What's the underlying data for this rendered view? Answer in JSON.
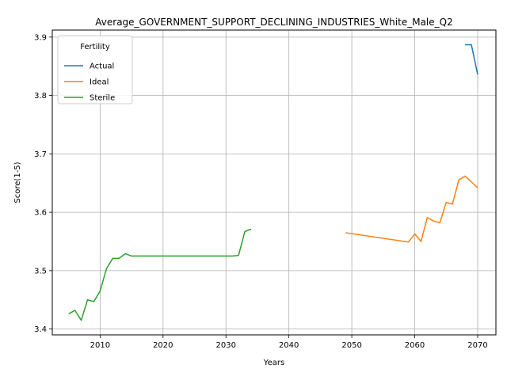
{
  "chart_data": {
    "type": "line",
    "title": "Average_GOVERNMENT_SUPPORT_DECLINING_INDUSTRIES_White_Male_Q2",
    "xlabel": "Years",
    "ylabel": "Score(1-5)",
    "xlim": [
      2002.4,
      2072.9
    ],
    "ylim": [
      3.39,
      3.912
    ],
    "xticks": [
      2010,
      2020,
      2030,
      2040,
      2050,
      2060,
      2070
    ],
    "yticks": [
      3.4,
      3.5,
      3.6,
      3.7,
      3.8,
      3.9
    ],
    "ytick_labels": [
      "3.4",
      "3.5",
      "3.6",
      "3.7",
      "3.8",
      "3.9"
    ],
    "grid": true,
    "legend": {
      "title": "Fertility",
      "placement": "top-left"
    },
    "series": [
      {
        "name": "Actual",
        "color": "#1f77b4",
        "x": [
          2068,
          2069,
          2070
        ],
        "y": [
          3.887,
          3.887,
          3.836
        ]
      },
      {
        "name": "Ideal",
        "color": "#ff7f0e",
        "x": [
          2049,
          2059,
          2060,
          2061,
          2062,
          2063,
          2064,
          2065,
          2066,
          2067,
          2068,
          2069,
          2070
        ],
        "y": [
          3.565,
          3.549,
          3.563,
          3.55,
          3.591,
          3.585,
          3.582,
          3.617,
          3.614,
          3.655,
          3.662,
          3.652,
          3.642
        ]
      },
      {
        "name": "Sterile",
        "color": "#2ca02c",
        "x": [
          2005,
          2006,
          2007,
          2008,
          2009,
          2010,
          2011,
          2012,
          2013,
          2014,
          2015,
          2016,
          2020,
          2025,
          2030,
          2031,
          2032,
          2033,
          2034
        ],
        "y": [
          3.426,
          3.432,
          3.415,
          3.45,
          3.447,
          3.465,
          3.503,
          3.521,
          3.521,
          3.529,
          3.525,
          3.525,
          3.525,
          3.525,
          3.525,
          3.525,
          3.526,
          3.567,
          3.571
        ]
      }
    ]
  }
}
